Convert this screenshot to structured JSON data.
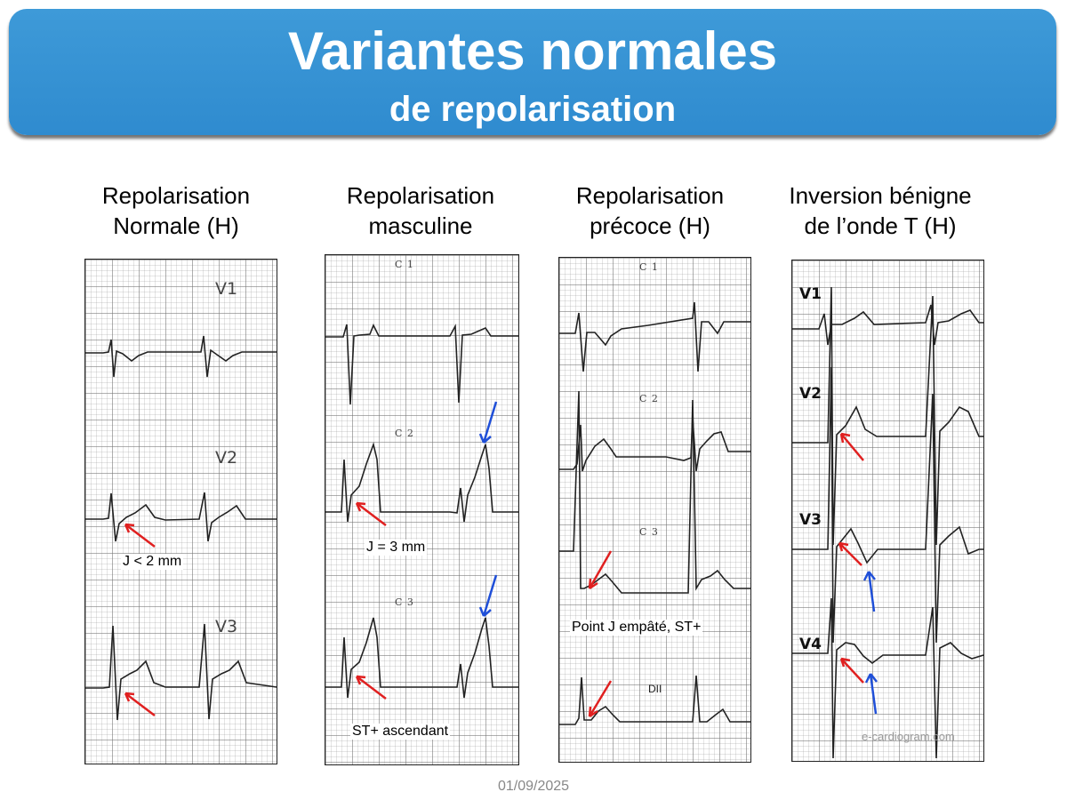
{
  "title": {
    "line1": "Variantes normales",
    "line2": "de repolarisation"
  },
  "columns": [
    {
      "heading": [
        "Repolarisation",
        "Normale (H)"
      ],
      "leads": [
        "V1",
        "V2",
        "V3"
      ],
      "note": "J < 2 mm"
    },
    {
      "heading": [
        "Repolarisation",
        "masculine"
      ],
      "leads": [
        "C 1",
        "C 2",
        "C 3"
      ],
      "notes": [
        "J = 3 mm",
        "ST+ ascendant"
      ]
    },
    {
      "heading": [
        "Repolarisation",
        "précoce (H)"
      ],
      "leads": [
        "C 1",
        "C 2",
        "C 3",
        "DII"
      ],
      "note": "Point J empâté, ST+"
    },
    {
      "heading": [
        "Inversion bénigne",
        "de l’onde T (H)"
      ],
      "leads": [
        "V1",
        "V2",
        "V3",
        "V4"
      ],
      "watermark": "e-cardiogram.com"
    }
  ],
  "colors": {
    "banner": "#3594d6",
    "red_arrow": "#e02020",
    "blue_arrow": "#1f4fd8",
    "trace": "#222222"
  },
  "footer": {
    "date": "01/09/2025"
  }
}
